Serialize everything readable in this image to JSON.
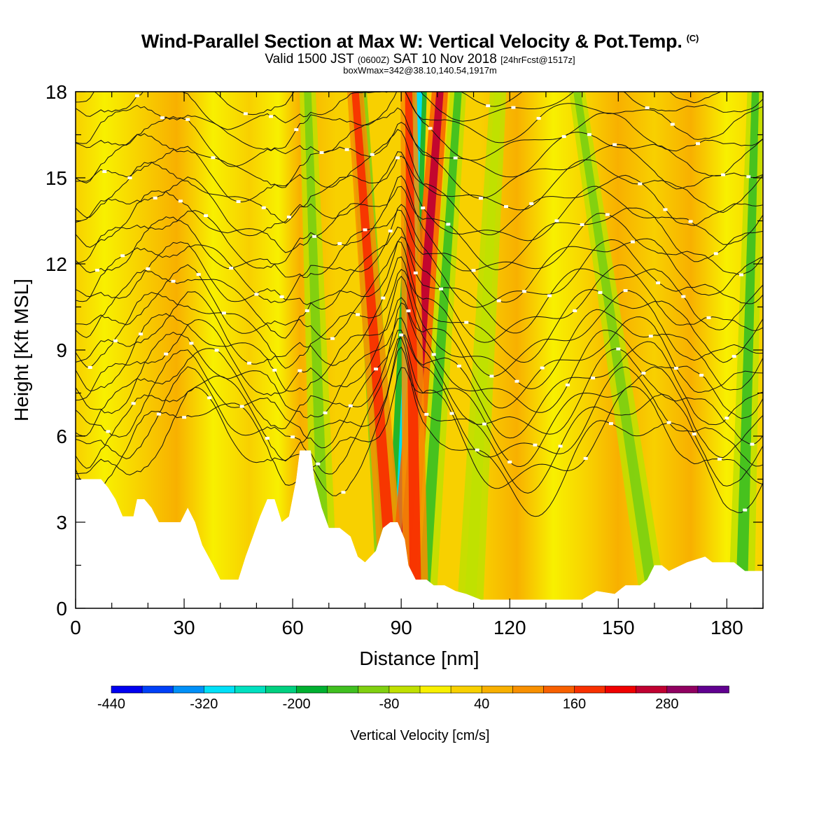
{
  "title": "Wind-Parallel Section at Max W: Vertical Velocity & Pot.Temp.",
  "copyright_mark": "(C)",
  "valid_prefix": "Valid 1500 JST",
  "valid_zulu": "(0600Z)",
  "valid_date": "SAT 10 Nov 2018",
  "forecast_tag": "[24hrFcst@1517z]",
  "box_wmax": "boxWmax=342@38.10,140.54,1917m",
  "chart_data": {
    "type": "heatmap",
    "xlabel": "Distance [nm]",
    "ylabel": "Height [Kft MSL]",
    "xlim": [
      0,
      190
    ],
    "ylim": [
      0,
      18
    ],
    "x_ticks": [
      0,
      30,
      60,
      90,
      120,
      150,
      180
    ],
    "y_ticks": [
      0,
      3,
      6,
      9,
      12,
      15,
      18
    ],
    "colorbar": {
      "label": "Vertical Velocity [cm/s]",
      "tick_labels": [
        -440,
        -320,
        -200,
        -80,
        40,
        160,
        280
      ],
      "levels": [
        -440,
        -400,
        -360,
        -320,
        -280,
        -240,
        -200,
        -160,
        -120,
        -80,
        -40,
        0,
        40,
        80,
        120,
        160,
        200,
        240,
        280,
        320,
        360
      ],
      "colors": [
        "#0000f0",
        "#0040f8",
        "#0090f8",
        "#00e0f8",
        "#00e0c0",
        "#00d080",
        "#00b030",
        "#40c020",
        "#80d010",
        "#c0e000",
        "#f8f000",
        "#f8d000",
        "#f8b000",
        "#f89000",
        "#f86000",
        "#f83000",
        "#f00000",
        "#c00030",
        "#900060",
        "#600090"
      ]
    },
    "updraft_bands": [
      {
        "x_bottom": 88,
        "x_top": 77,
        "w": 240
      },
      {
        "x_bottom": 90,
        "x_top": 101,
        "w": 342
      },
      {
        "x_bottom": 94,
        "x_top": 92,
        "w": 200
      }
    ],
    "downdraft_bands": [
      {
        "x_bottom": 89,
        "x_top": 95,
        "w": -380
      },
      {
        "x_bottom": 87,
        "x_top": 78,
        "w": -180
      },
      {
        "x_bottom": 96,
        "x_top": 106,
        "w": -160
      },
      {
        "x_bottom": 69,
        "x_top": 64,
        "w": -120
      },
      {
        "x_bottom": 109,
        "x_top": 117,
        "w": -100
      },
      {
        "x_bottom": 160,
        "x_top": 138,
        "w": -120
      },
      {
        "x_bottom": 184,
        "x_top": 188,
        "w": -160
      }
    ],
    "terrain_kft": [
      [
        0,
        4.5
      ],
      [
        7,
        4.5
      ],
      [
        9,
        4.2
      ],
      [
        11,
        3.8
      ],
      [
        13,
        3.2
      ],
      [
        16,
        3.2
      ],
      [
        17,
        3.8
      ],
      [
        19,
        3.8
      ],
      [
        21,
        3.5
      ],
      [
        23,
        3.0
      ],
      [
        25,
        3.0
      ],
      [
        27,
        3.0
      ],
      [
        29,
        3.0
      ],
      [
        31,
        3.5
      ],
      [
        33,
        3.0
      ],
      [
        35,
        2.2
      ],
      [
        38,
        1.5
      ],
      [
        40,
        1.0
      ],
      [
        45,
        1.0
      ],
      [
        47,
        1.8
      ],
      [
        49,
        2.5
      ],
      [
        51,
        3.2
      ],
      [
        53,
        3.8
      ],
      [
        55,
        3.8
      ],
      [
        57,
        3.0
      ],
      [
        59,
        3.2
      ],
      [
        61,
        4.5
      ],
      [
        62,
        5.5
      ],
      [
        65,
        5.5
      ],
      [
        66,
        4.5
      ],
      [
        68,
        3.5
      ],
      [
        70,
        2.8
      ],
      [
        73,
        2.8
      ],
      [
        76,
        2.5
      ],
      [
        78,
        1.8
      ],
      [
        80,
        1.6
      ],
      [
        83,
        2.0
      ],
      [
        85,
        2.8
      ],
      [
        87,
        3.0
      ],
      [
        89,
        3.0
      ],
      [
        91,
        2.4
      ],
      [
        92,
        1.5
      ],
      [
        94,
        1.0
      ],
      [
        97,
        1.0
      ],
      [
        99,
        0.8
      ],
      [
        102,
        0.8
      ],
      [
        105,
        0.6
      ],
      [
        108,
        0.5
      ],
      [
        112,
        0.3
      ],
      [
        120,
        0.3
      ],
      [
        130,
        0.3
      ],
      [
        140,
        0.3
      ],
      [
        144,
        0.6
      ],
      [
        149,
        0.5
      ],
      [
        152,
        0.8
      ],
      [
        156,
        0.8
      ],
      [
        158,
        1.0
      ],
      [
        160,
        1.5
      ],
      [
        162,
        1.5
      ],
      [
        164,
        1.3
      ],
      [
        169,
        1.6
      ],
      [
        174,
        1.8
      ],
      [
        176,
        1.6
      ],
      [
        182,
        1.6
      ],
      [
        185,
        1.3
      ],
      [
        190,
        1.3
      ]
    ],
    "theta_contours": {
      "count": 34,
      "base_kft": 5.2,
      "spacing_kft": 0.38,
      "style": "black lines with white inline labels"
    }
  }
}
